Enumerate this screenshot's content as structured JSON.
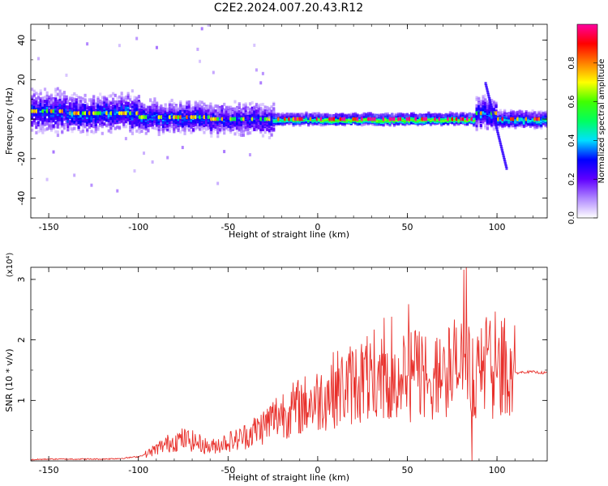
{
  "title": "C2E2.2024.007.20.43.R12",
  "chart_data": [
    {
      "type": "heatmap",
      "xlabel": "Height of straight line (km)",
      "ylabel": "Frequency (Hz)",
      "xlim": [
        -160,
        128
      ],
      "ylim": [
        -50,
        48
      ],
      "x_ticks": [
        "-150",
        "-100",
        "-50",
        "0",
        "50",
        "100"
      ],
      "x_tick_values": [
        -150,
        -100,
        -50,
        0,
        50,
        100
      ],
      "y_ticks": [
        "40",
        "20",
        "0",
        "-20",
        "-40"
      ],
      "y_tick_values": [
        40,
        20,
        0,
        -20,
        -40
      ],
      "colorbar": {
        "label": "Normalized spectral amplitude",
        "range": [
          0,
          1
        ],
        "ticks": [
          "0.0",
          "0.2",
          "0.4",
          "0.6",
          "0.8"
        ],
        "tick_values": [
          0,
          0.2,
          0.4,
          0.6,
          0.8
        ],
        "colors": [
          "#ffffff",
          "#b088ff",
          "#6000ff",
          "#0000ff",
          "#00e0ff",
          "#00ff60",
          "#40ff00",
          "#ffff00",
          "#ff8000",
          "#ff0000",
          "#ff00a0"
        ]
      },
      "bands": [
        {
          "x_from": -160,
          "x_to": -140,
          "center": 4,
          "halfwidth": 8,
          "amplitude": 0.32
        },
        {
          "x_from": -140,
          "x_to": -100,
          "center": 3,
          "halfwidth": 7,
          "amplitude": 0.35
        },
        {
          "x_from": -100,
          "x_to": -60,
          "center": 1,
          "halfwidth": 6,
          "amplitude": 0.33
        },
        {
          "x_from": -60,
          "x_to": -25,
          "center": 0,
          "halfwidth": 6,
          "amplitude": 0.3
        },
        {
          "x_from": -25,
          "x_to": 0,
          "center": 0,
          "halfwidth": 2,
          "amplitude": 0.55
        },
        {
          "x_from": 0,
          "x_to": 88,
          "center": 0,
          "halfwidth": 2,
          "amplitude": 0.65
        },
        {
          "x_from": 88,
          "x_to": 100,
          "center": 3,
          "halfwidth": 6,
          "amplitude": 0.35
        },
        {
          "x_from": 100,
          "x_to": 128,
          "center": 0,
          "halfwidth": 3,
          "amplitude": 0.45
        }
      ]
    },
    {
      "type": "line",
      "xlabel": "Height of straight line (km)",
      "ylabel": "SNR (10 * v/v)",
      "y_multiplier_label": "(x10⁴)",
      "xlim": [
        -160,
        128
      ],
      "ylim": [
        0,
        3.2
      ],
      "x_ticks": [
        "-150",
        "-100",
        "-50",
        "0",
        "50",
        "100"
      ],
      "x_tick_values": [
        -150,
        -100,
        -50,
        0,
        50,
        100
      ],
      "y_ticks": [
        "3",
        "2",
        "1"
      ],
      "y_tick_values": [
        3,
        2,
        1
      ],
      "series": [
        {
          "color": "#e8302b",
          "x": [
            -160,
            -150,
            -140,
            -130,
            -120,
            -110,
            -100,
            -95,
            -90,
            -85,
            -80,
            -75,
            -70,
            -65,
            -60,
            -55,
            -50,
            -45,
            -40,
            -35,
            -30,
            -25,
            -20,
            -15,
            -10,
            -5,
            0,
            5,
            10,
            15,
            20,
            25,
            30,
            35,
            40,
            45,
            50,
            55,
            60,
            65,
            70,
            75,
            80,
            85,
            90,
            95,
            100,
            105,
            110,
            115,
            120,
            128
          ],
          "y": [
            0.02,
            0.03,
            0.03,
            0.03,
            0.03,
            0.04,
            0.07,
            0.12,
            0.2,
            0.27,
            0.33,
            0.36,
            0.33,
            0.28,
            0.22,
            0.28,
            0.32,
            0.35,
            0.42,
            0.5,
            0.58,
            0.7,
            0.8,
            0.83,
            0.9,
            0.95,
            1.0,
            1.1,
            1.2,
            1.2,
            1.3,
            1.35,
            1.35,
            1.3,
            1.45,
            1.4,
            1.3,
            1.5,
            1.45,
            1.3,
            1.5,
            1.55,
            1.55,
            1.5,
            1.45,
            1.5,
            1.55,
            1.5,
            1.45,
            1.47,
            1.47,
            1.45
          ]
        }
      ]
    }
  ]
}
